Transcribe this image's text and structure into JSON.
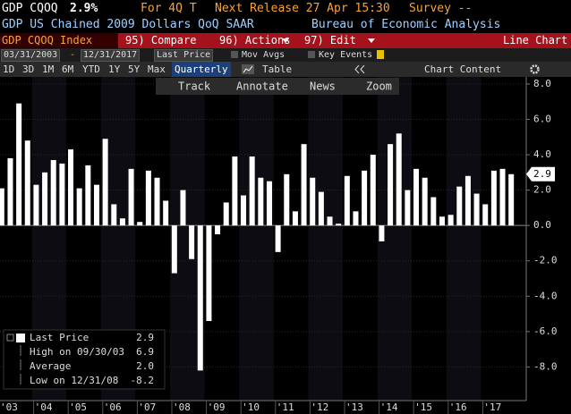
{
  "ui": {
    "ticker": "GDP CQOQ",
    "last": "2.9%",
    "period": "For 4Q T",
    "release": "Next Release 27 Apr 15:30",
    "survey": "Survey --",
    "description": "GDP US Chained 2009 Dollars QoQ SAAR",
    "source": "Bureau of Economic Analysis",
    "security": "GDP CQOQ Index",
    "menu": [
      "95) Compare",
      "96) Actions",
      "97) Edit"
    ],
    "chart_kind": "Line Chart",
    "start_date": "03/31/2003",
    "date_sep": "-",
    "end_date": "12/31/2017",
    "price_field": "Last Price",
    "mov_avgs": "Mov Avgs",
    "key_events": "Key Events",
    "ranges": [
      "1D",
      "3D",
      "1M",
      "6M",
      "YTD",
      "1Y",
      "5Y",
      "Max"
    ],
    "frequency": "Quarterly",
    "table": "Table",
    "chart_content": "Chart Content",
    "tools": [
      "Track",
      "Annotate",
      "News",
      "Zoom"
    ]
  },
  "chart_data": {
    "type": "bar",
    "color": "#ffffff",
    "categories": [
      "'03",
      null,
      null,
      null,
      "'04",
      null,
      null,
      null,
      "'05",
      null,
      null,
      null,
      "'06",
      null,
      null,
      null,
      "'07",
      null,
      null,
      null,
      "'08",
      null,
      null,
      null,
      "'09",
      null,
      null,
      null,
      "'10",
      null,
      null,
      null,
      "'11",
      null,
      null,
      null,
      "'12",
      null,
      null,
      null,
      "'13",
      null,
      null,
      null,
      "'14",
      null,
      null,
      null,
      "'15",
      null,
      null,
      null,
      "'16",
      null,
      null,
      null,
      "'17",
      null,
      null,
      null
    ],
    "values": [
      2.1,
      3.8,
      6.9,
      4.8,
      2.3,
      3.0,
      3.7,
      3.5,
      4.3,
      2.1,
      3.4,
      2.3,
      4.9,
      1.2,
      0.4,
      3.2,
      0.2,
      3.1,
      2.7,
      1.4,
      -2.7,
      2.0,
      -1.9,
      -8.2,
      -5.4,
      -0.5,
      1.3,
      3.9,
      1.7,
      3.9,
      2.7,
      2.5,
      -1.5,
      2.9,
      0.8,
      4.6,
      2.7,
      1.9,
      0.5,
      0.1,
      2.8,
      0.8,
      3.1,
      4.0,
      -0.9,
      4.6,
      5.2,
      2.0,
      3.2,
      2.7,
      1.6,
      0.5,
      0.6,
      2.2,
      2.8,
      1.8,
      1.2,
      3.1,
      3.2,
      2.9
    ],
    "ylim": [
      -9.9,
      8.4
    ],
    "yticks": [
      {
        "value": -8,
        "label": "-8.0"
      },
      {
        "value": -6,
        "label": "-6.0"
      },
      {
        "value": -4,
        "label": "-4.0"
      },
      {
        "value": -2,
        "label": "-2.0"
      },
      {
        "value": 0,
        "label": "0.0"
      },
      {
        "value": 2,
        "label": "2.0"
      },
      {
        "value": 4,
        "label": "4.0"
      },
      {
        "value": 6,
        "label": "6.0"
      },
      {
        "value": 8,
        "label": "8.0"
      }
    ],
    "grid": true,
    "stats": {
      "labels": [
        "Last Price",
        "High on 09/30/03",
        "Average",
        "Low on 12/31/08"
      ],
      "values": [
        2.9,
        6.9,
        2.0,
        -8.2
      ],
      "value_labels": [
        "2.9",
        "6.9",
        "2.0",
        "-8.2"
      ]
    }
  }
}
